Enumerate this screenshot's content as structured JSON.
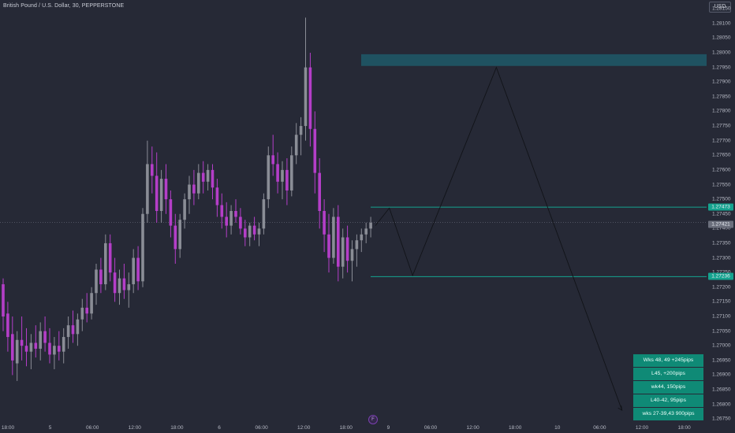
{
  "header": {
    "symbol_title": "British Pound / U.S. Dollar, 30, PEPPERSTONE"
  },
  "axis": {
    "currency": "USD",
    "y_ticks": [
      "1.28150",
      "1.28100",
      "1.28050",
      "1.28000",
      "1.27950",
      "1.27900",
      "1.27850",
      "1.27800",
      "1.27750",
      "1.27700",
      "1.27650",
      "1.27600",
      "1.27550",
      "1.27500",
      "1.27450",
      "1.27400",
      "1.27350",
      "1.27300",
      "1.27250",
      "1.27200",
      "1.27150",
      "1.27100",
      "1.27050",
      "1.27000",
      "1.26950",
      "1.26900",
      "1.26850",
      "1.26800",
      "1.26750"
    ],
    "x_ticks": [
      "18:00",
      "5",
      "06:00",
      "12:00",
      "18:00",
      "6",
      "06:00",
      "12:00",
      "18:00",
      "9",
      "06:00",
      "12:00",
      "18:00",
      "10",
      "06:00",
      "12:00",
      "18:00"
    ]
  },
  "price_tags": {
    "upper_level": "1.27473",
    "current_price": "1.27421",
    "lower_level": "1.27236"
  },
  "flag_badge": "F",
  "notes": [
    "Wks 48, 49 +245pips",
    "L45, +200pips",
    "wk44, 150pips",
    "L40-42, 95pips",
    "wks 27-39,43 900pips"
  ],
  "colors": {
    "background": "#262936",
    "bull_candle": "#8a8d96",
    "bear_candle": "#b43ec8",
    "zone": "#1f5766",
    "level_line": "#15a38f",
    "note_bg": "#0f8a76",
    "path_line": "#111318"
  },
  "chart_data": {
    "type": "candlestick",
    "title": "British Pound / U.S. Dollar, 30, PEPPERSTONE",
    "ylim": [
      1.2674,
      1.2818
    ],
    "levels": {
      "supply_zone": [
        1.27955,
        1.27995
      ],
      "upper_line": 1.27473,
      "current_price": 1.27421,
      "lower_line": 1.27236
    },
    "projection_path": [
      {
        "bar": 80,
        "price": 1.2741
      },
      {
        "bar": 83,
        "price": 1.2747
      },
      {
        "bar": 88,
        "price": 1.2724
      },
      {
        "bar": 106,
        "price": 1.2795
      },
      {
        "bar": 133,
        "price": 1.2678
      }
    ],
    "candles": [
      {
        "o": 1.2721,
        "h": 1.2723,
        "l": 1.2705,
        "c": 1.271
      },
      {
        "o": 1.2711,
        "h": 1.2715,
        "l": 1.2698,
        "c": 1.2703
      },
      {
        "o": 1.2704,
        "h": 1.271,
        "l": 1.269,
        "c": 1.2695
      },
      {
        "o": 1.2694,
        "h": 1.2705,
        "l": 1.2688,
        "c": 1.2702
      },
      {
        "o": 1.2702,
        "h": 1.271,
        "l": 1.2695,
        "c": 1.27
      },
      {
        "o": 1.27,
        "h": 1.2706,
        "l": 1.2693,
        "c": 1.2698
      },
      {
        "o": 1.2698,
        "h": 1.2704,
        "l": 1.2692,
        "c": 1.2701
      },
      {
        "o": 1.2701,
        "h": 1.2707,
        "l": 1.2696,
        "c": 1.2699
      },
      {
        "o": 1.2699,
        "h": 1.2708,
        "l": 1.2695,
        "c": 1.2705
      },
      {
        "o": 1.2705,
        "h": 1.271,
        "l": 1.2698,
        "c": 1.2701
      },
      {
        "o": 1.2701,
        "h": 1.2706,
        "l": 1.2694,
        "c": 1.2697
      },
      {
        "o": 1.2697,
        "h": 1.2703,
        "l": 1.2692,
        "c": 1.27
      },
      {
        "o": 1.27,
        "h": 1.2705,
        "l": 1.2695,
        "c": 1.2698
      },
      {
        "o": 1.2698,
        "h": 1.2706,
        "l": 1.2694,
        "c": 1.2703
      },
      {
        "o": 1.2703,
        "h": 1.271,
        "l": 1.2699,
        "c": 1.2707
      },
      {
        "o": 1.2707,
        "h": 1.2712,
        "l": 1.2701,
        "c": 1.2704
      },
      {
        "o": 1.2704,
        "h": 1.2711,
        "l": 1.27,
        "c": 1.2709
      },
      {
        "o": 1.2709,
        "h": 1.2716,
        "l": 1.2705,
        "c": 1.2713
      },
      {
        "o": 1.2713,
        "h": 1.2718,
        "l": 1.2708,
        "c": 1.2711
      },
      {
        "o": 1.2711,
        "h": 1.272,
        "l": 1.2709,
        "c": 1.2718
      },
      {
        "o": 1.2718,
        "h": 1.2728,
        "l": 1.2714,
        "c": 1.2726
      },
      {
        "o": 1.2726,
        "h": 1.273,
        "l": 1.2718,
        "c": 1.2721
      },
      {
        "o": 1.2721,
        "h": 1.2738,
        "l": 1.2719,
        "c": 1.2735
      },
      {
        "o": 1.2735,
        "h": 1.2738,
        "l": 1.2722,
        "c": 1.2725
      },
      {
        "o": 1.2725,
        "h": 1.273,
        "l": 1.2715,
        "c": 1.2718
      },
      {
        "o": 1.2718,
        "h": 1.2726,
        "l": 1.2714,
        "c": 1.2723
      },
      {
        "o": 1.2723,
        "h": 1.2728,
        "l": 1.2716,
        "c": 1.2719
      },
      {
        "o": 1.2719,
        "h": 1.2725,
        "l": 1.2713,
        "c": 1.2721
      },
      {
        "o": 1.2721,
        "h": 1.2733,
        "l": 1.2718,
        "c": 1.273
      },
      {
        "o": 1.273,
        "h": 1.2734,
        "l": 1.2719,
        "c": 1.2722
      },
      {
        "o": 1.2722,
        "h": 1.2747,
        "l": 1.272,
        "c": 1.2745
      },
      {
        "o": 1.2745,
        "h": 1.277,
        "l": 1.2742,
        "c": 1.2762
      },
      {
        "o": 1.2762,
        "h": 1.2768,
        "l": 1.2752,
        "c": 1.2758
      },
      {
        "o": 1.2758,
        "h": 1.2766,
        "l": 1.2742,
        "c": 1.2746
      },
      {
        "o": 1.2746,
        "h": 1.276,
        "l": 1.2742,
        "c": 1.2757
      },
      {
        "o": 1.2757,
        "h": 1.2762,
        "l": 1.2745,
        "c": 1.275
      },
      {
        "o": 1.275,
        "h": 1.2753,
        "l": 1.2737,
        "c": 1.2741
      },
      {
        "o": 1.2741,
        "h": 1.2745,
        "l": 1.2728,
        "c": 1.2733
      },
      {
        "o": 1.2733,
        "h": 1.2745,
        "l": 1.273,
        "c": 1.2743
      },
      {
        "o": 1.2743,
        "h": 1.2752,
        "l": 1.274,
        "c": 1.275
      },
      {
        "o": 1.275,
        "h": 1.2758,
        "l": 1.2745,
        "c": 1.2755
      },
      {
        "o": 1.2755,
        "h": 1.276,
        "l": 1.2748,
        "c": 1.2752
      },
      {
        "o": 1.2752,
        "h": 1.2762,
        "l": 1.275,
        "c": 1.2759
      },
      {
        "o": 1.2759,
        "h": 1.2763,
        "l": 1.2752,
        "c": 1.2756
      },
      {
        "o": 1.2756,
        "h": 1.2762,
        "l": 1.2753,
        "c": 1.276
      },
      {
        "o": 1.276,
        "h": 1.2762,
        "l": 1.275,
        "c": 1.2754
      },
      {
        "o": 1.2754,
        "h": 1.2757,
        "l": 1.2744,
        "c": 1.2748
      },
      {
        "o": 1.2748,
        "h": 1.2752,
        "l": 1.274,
        "c": 1.2744
      },
      {
        "o": 1.2744,
        "h": 1.2749,
        "l": 1.2737,
        "c": 1.2741
      },
      {
        "o": 1.2741,
        "h": 1.2748,
        "l": 1.2738,
        "c": 1.2746
      },
      {
        "o": 1.2746,
        "h": 1.275,
        "l": 1.2742,
        "c": 1.2744
      },
      {
        "o": 1.2744,
        "h": 1.2747,
        "l": 1.2738,
        "c": 1.274
      },
      {
        "o": 1.274,
        "h": 1.2743,
        "l": 1.2734,
        "c": 1.2737
      },
      {
        "o": 1.2737,
        "h": 1.2742,
        "l": 1.2734,
        "c": 1.2741
      },
      {
        "o": 1.2741,
        "h": 1.2744,
        "l": 1.2736,
        "c": 1.2738
      },
      {
        "o": 1.2738,
        "h": 1.2742,
        "l": 1.2734,
        "c": 1.274
      },
      {
        "o": 1.274,
        "h": 1.2752,
        "l": 1.2738,
        "c": 1.275
      },
      {
        "o": 1.275,
        "h": 1.2768,
        "l": 1.2747,
        "c": 1.2765
      },
      {
        "o": 1.2765,
        "h": 1.2772,
        "l": 1.2758,
        "c": 1.2762
      },
      {
        "o": 1.2762,
        "h": 1.2766,
        "l": 1.2752,
        "c": 1.2756
      },
      {
        "o": 1.2756,
        "h": 1.2763,
        "l": 1.275,
        "c": 1.276
      },
      {
        "o": 1.276,
        "h": 1.2764,
        "l": 1.2748,
        "c": 1.2753
      },
      {
        "o": 1.2753,
        "h": 1.2768,
        "l": 1.2751,
        "c": 1.2765
      },
      {
        "o": 1.2765,
        "h": 1.2776,
        "l": 1.2762,
        "c": 1.2772
      },
      {
        "o": 1.2772,
        "h": 1.2778,
        "l": 1.2765,
        "c": 1.2775
      },
      {
        "o": 1.2775,
        "h": 1.2812,
        "l": 1.277,
        "c": 1.2795
      },
      {
        "o": 1.2795,
        "h": 1.28,
        "l": 1.2768,
        "c": 1.2774
      },
      {
        "o": 1.2774,
        "h": 1.278,
        "l": 1.2752,
        "c": 1.2759
      },
      {
        "o": 1.2759,
        "h": 1.2764,
        "l": 1.274,
        "c": 1.2746
      },
      {
        "o": 1.2746,
        "h": 1.275,
        "l": 1.2732,
        "c": 1.2738
      },
      {
        "o": 1.2738,
        "h": 1.2745,
        "l": 1.2725,
        "c": 1.273
      },
      {
        "o": 1.273,
        "h": 1.2747,
        "l": 1.2728,
        "c": 1.2744
      },
      {
        "o": 1.2744,
        "h": 1.2748,
        "l": 1.2722,
        "c": 1.2727
      },
      {
        "o": 1.2727,
        "h": 1.274,
        "l": 1.2723,
        "c": 1.2737
      },
      {
        "o": 1.2737,
        "h": 1.2741,
        "l": 1.2725,
        "c": 1.2729
      },
      {
        "o": 1.2729,
        "h": 1.2736,
        "l": 1.2722,
        "c": 1.2733
      },
      {
        "o": 1.2733,
        "h": 1.2738,
        "l": 1.2727,
        "c": 1.2736
      },
      {
        "o": 1.2736,
        "h": 1.274,
        "l": 1.2732,
        "c": 1.2738
      },
      {
        "o": 1.2738,
        "h": 1.2742,
        "l": 1.2735,
        "c": 1.274
      },
      {
        "o": 1.274,
        "h": 1.2744,
        "l": 1.2737,
        "c": 1.2742
      }
    ]
  }
}
